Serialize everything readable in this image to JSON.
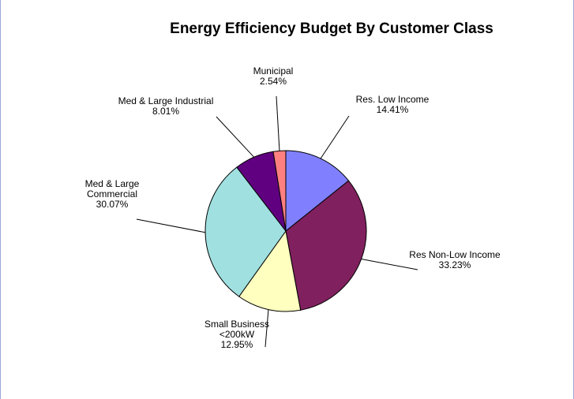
{
  "chart_data": {
    "type": "pie",
    "title": "Energy Efficiency Budget By Customer Class",
    "slices": [
      {
        "label_lines": [
          "Res. Low Income"
        ],
        "value": 14.41,
        "value_label": "14.41%",
        "color": "#8080ff"
      },
      {
        "label_lines": [
          "Res Non-Low Income"
        ],
        "value": 33.23,
        "value_label": "33.23%",
        "color": "#80205e"
      },
      {
        "label_lines": [
          "Small Business",
          "<200kW"
        ],
        "value": 12.95,
        "value_label": "12.95%",
        "color": "#ffffc0"
      },
      {
        "label_lines": [
          "Med & Large",
          "Commercial"
        ],
        "value": 30.07,
        "value_label": "30.07%",
        "color": "#a0e0e0"
      },
      {
        "label_lines": [
          "Med & Large Industrial"
        ],
        "value": 8.01,
        "value_label": "8.01%",
        "color": "#600080"
      },
      {
        "label_lines": [
          "Municipal"
        ],
        "value": 2.54,
        "value_label": "2.54%",
        "color": "#ff8080"
      }
    ],
    "legend": "none",
    "start_angle": "12 o'clock",
    "direction": "clockwise"
  }
}
